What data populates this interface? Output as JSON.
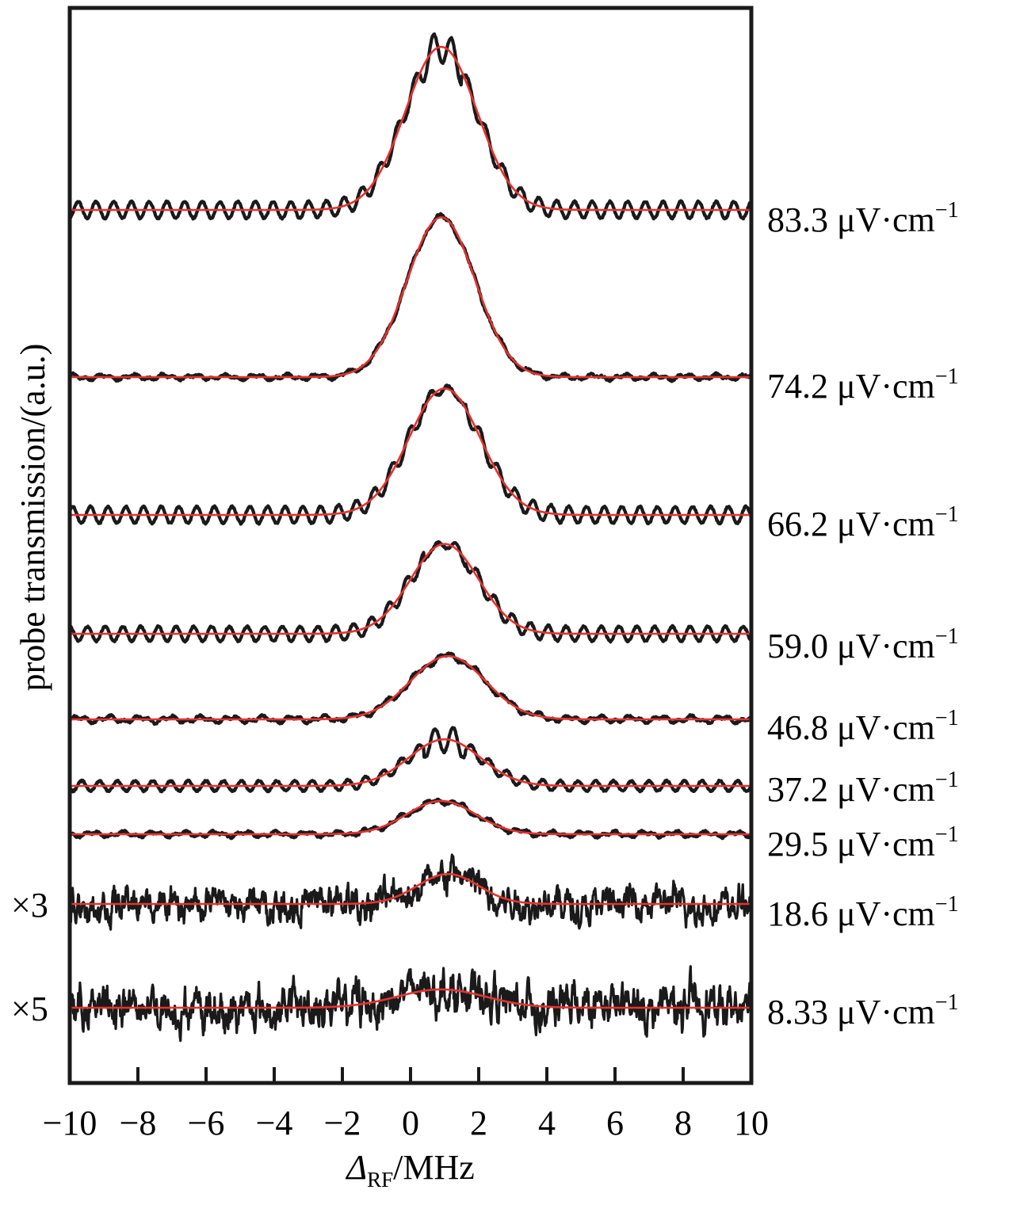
{
  "chart_data": {
    "type": "line",
    "xlabel_symbol": "Δ",
    "xlabel_subscript": "RF",
    "xlabel_unit": "/MHz",
    "ylabel": "probe transmission/(a.u.)",
    "xlim": [
      -10,
      10
    ],
    "x_ticks": [
      -10,
      -8,
      -6,
      -4,
      -2,
      0,
      2,
      4,
      6,
      8,
      10
    ],
    "x_tick_labels": [
      "−10",
      "−8",
      "−6",
      "−4",
      "−2",
      "0",
      "2",
      "4",
      "6",
      "8",
      "10"
    ],
    "colors": {
      "data": "#1a1a1a",
      "fit": "#e8322e"
    },
    "series": [
      {
        "label": "83.3 μV·cm⁻¹",
        "multiplier": "",
        "peak_center": 0.9,
        "peak_height": 4.9,
        "peak_width": 1.05,
        "baseline_noise": 0.25,
        "noise_type": "oscillation"
      },
      {
        "label": "74.2 μV·cm⁻¹",
        "multiplier": "",
        "peak_center": 0.9,
        "peak_height": 4.8,
        "peak_width": 1.0,
        "baseline_noise": 0.1,
        "noise_type": "smooth"
      },
      {
        "label": "66.2 μV·cm⁻¹",
        "multiplier": "",
        "peak_center": 1.0,
        "peak_height": 3.8,
        "peak_width": 1.05,
        "baseline_noise": 0.25,
        "noise_type": "oscillation"
      },
      {
        "label": "59.0 μV·cm⁻¹",
        "multiplier": "",
        "peak_center": 1.0,
        "peak_height": 2.7,
        "peak_width": 1.0,
        "baseline_noise": 0.22,
        "noise_type": "oscillation"
      },
      {
        "label": "46.8 μV·cm⁻¹",
        "multiplier": "",
        "peak_center": 1.1,
        "peak_height": 1.9,
        "peak_width": 1.1,
        "baseline_noise": 0.12,
        "noise_type": "smooth"
      },
      {
        "label": "37.2 μV·cm⁻¹",
        "multiplier": "",
        "peak_center": 1.0,
        "peak_height": 1.4,
        "peak_width": 1.05,
        "baseline_noise": 0.15,
        "noise_type": "oscillation"
      },
      {
        "label": "29.5 μV·cm⁻¹",
        "multiplier": "",
        "peak_center": 0.9,
        "peak_height": 1.0,
        "peak_width": 1.0,
        "baseline_noise": 0.1,
        "noise_type": "smooth"
      },
      {
        "label": "18.6 μV·cm⁻¹",
        "multiplier": "×3",
        "peak_center": 1.1,
        "peak_height": 0.9,
        "peak_width": 0.9,
        "baseline_noise": 0.55,
        "noise_type": "random"
      },
      {
        "label": "8.33 μV·cm⁻¹",
        "multiplier": "×5",
        "peak_center": 0.9,
        "peak_height": 0.55,
        "peak_width": 1.3,
        "baseline_noise": 0.7,
        "noise_type": "random"
      }
    ]
  }
}
